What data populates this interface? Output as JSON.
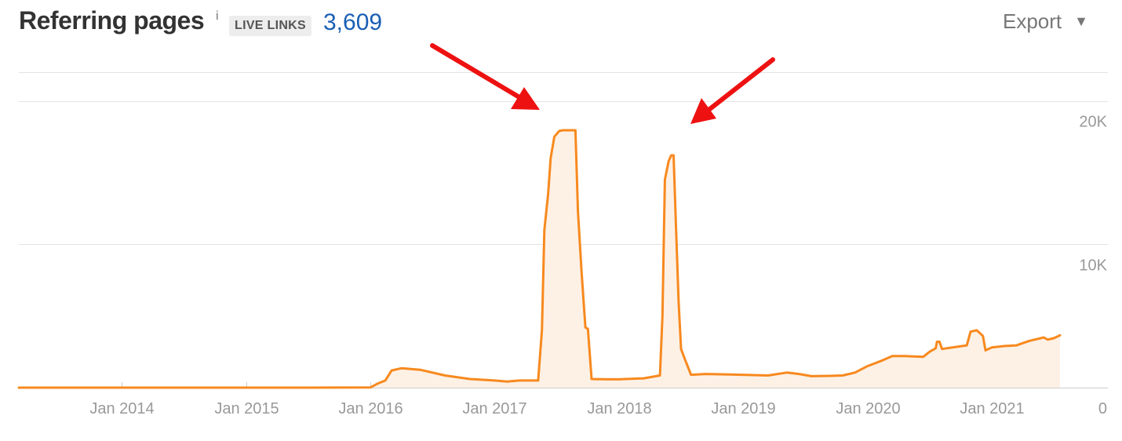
{
  "header": {
    "title": "Referring pages",
    "info_mark": "i",
    "badge": "LIVE LINKS",
    "count": "3,609",
    "export_label": "Export",
    "export_caret": "▼"
  },
  "colors": {
    "line": "#f7891e",
    "fill": "#fdf1e6",
    "grid": "#e3e3e3",
    "arrow": "#ee1111",
    "count": "#1a5fb4"
  },
  "chart_data": {
    "type": "area",
    "title": "Referring pages",
    "xlabel": "",
    "ylabel": "",
    "y_ticks": [
      {
        "value": 0,
        "label": "0"
      },
      {
        "value": 10000,
        "label": "10K"
      },
      {
        "value": 20000,
        "label": "20K"
      }
    ],
    "x_ticks": [
      {
        "value": 2014.0,
        "label": "Jan 2014"
      },
      {
        "value": 2015.0,
        "label": "Jan 2015"
      },
      {
        "value": 2016.0,
        "label": "Jan 2016"
      },
      {
        "value": 2017.0,
        "label": "Jan 2017"
      },
      {
        "value": 2018.0,
        "label": "Jan 2018"
      },
      {
        "value": 2019.0,
        "label": "Jan 2019"
      },
      {
        "value": 2020.0,
        "label": "Jan 2020"
      },
      {
        "value": 2021.0,
        "label": "Jan 2021"
      }
    ],
    "xlim": [
      2013.17,
      2021.55
    ],
    "ylim": [
      0,
      22000
    ],
    "grid": true,
    "series": [
      {
        "values": [
          [
            2013.17,
            0
          ],
          [
            2015.5,
            0
          ],
          [
            2016.0,
            10
          ],
          [
            2016.05,
            250
          ],
          [
            2016.12,
            500
          ],
          [
            2016.17,
            1200
          ],
          [
            2016.25,
            1350
          ],
          [
            2016.4,
            1250
          ],
          [
            2016.6,
            850
          ],
          [
            2016.8,
            600
          ],
          [
            2017.0,
            500
          ],
          [
            2017.1,
            420
          ],
          [
            2017.2,
            500
          ],
          [
            2017.35,
            500
          ],
          [
            2017.38,
            4000
          ],
          [
            2017.4,
            11000
          ],
          [
            2017.43,
            13500
          ],
          [
            2017.45,
            16000
          ],
          [
            2017.48,
            17500
          ],
          [
            2017.52,
            17900
          ],
          [
            2017.55,
            17950
          ],
          [
            2017.65,
            17950
          ],
          [
            2017.67,
            12300
          ],
          [
            2017.7,
            8000
          ],
          [
            2017.73,
            4200
          ],
          [
            2017.75,
            4100
          ],
          [
            2017.78,
            600
          ],
          [
            2017.9,
            580
          ],
          [
            2018.0,
            580
          ],
          [
            2018.2,
            650
          ],
          [
            2018.33,
            850
          ],
          [
            2018.35,
            5000
          ],
          [
            2018.37,
            14500
          ],
          [
            2018.4,
            15800
          ],
          [
            2018.42,
            16200
          ],
          [
            2018.44,
            16200
          ],
          [
            2018.46,
            11000
          ],
          [
            2018.48,
            6000
          ],
          [
            2018.5,
            2700
          ],
          [
            2018.53,
            2000
          ],
          [
            2018.58,
            900
          ],
          [
            2018.7,
            950
          ],
          [
            2018.9,
            920
          ],
          [
            2019.2,
            850
          ],
          [
            2019.35,
            1050
          ],
          [
            2019.45,
            950
          ],
          [
            2019.55,
            800
          ],
          [
            2019.7,
            820
          ],
          [
            2019.8,
            850
          ],
          [
            2019.9,
            1050
          ],
          [
            2020.0,
            1500
          ],
          [
            2020.12,
            1900
          ],
          [
            2020.2,
            2200
          ],
          [
            2020.3,
            2200
          ],
          [
            2020.45,
            2150
          ],
          [
            2020.5,
            2500
          ],
          [
            2020.55,
            2750
          ],
          [
            2020.56,
            3200
          ],
          [
            2020.58,
            3200
          ],
          [
            2020.6,
            2700
          ],
          [
            2020.8,
            2950
          ],
          [
            2020.83,
            3900
          ],
          [
            2020.88,
            4000
          ],
          [
            2020.93,
            3600
          ],
          [
            2020.95,
            2600
          ],
          [
            2021.0,
            2800
          ],
          [
            2021.1,
            2900
          ],
          [
            2021.2,
            2950
          ],
          [
            2021.3,
            3250
          ],
          [
            2021.42,
            3500
          ],
          [
            2021.45,
            3350
          ],
          [
            2021.5,
            3450
          ],
          [
            2021.55,
            3650
          ]
        ]
      }
    ]
  }
}
